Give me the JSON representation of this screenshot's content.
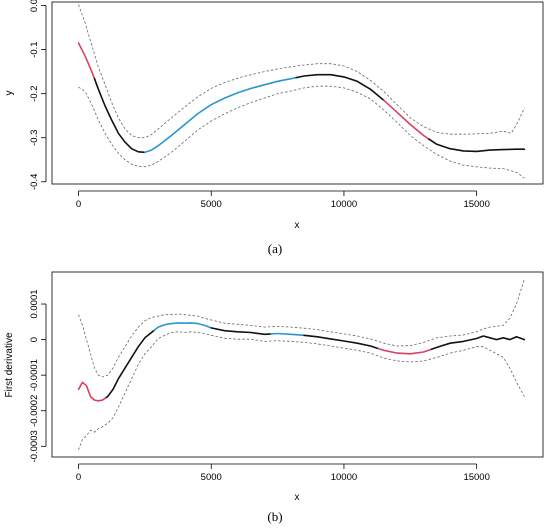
{
  "chart_data": [
    {
      "type": "line",
      "panel_label": "(a)",
      "xlabel": "x",
      "ylabel": "y",
      "xlim": [
        -1000,
        17500
      ],
      "ylim": [
        -0.405,
        0.008
      ],
      "xticks": [
        0,
        5000,
        10000,
        15000
      ],
      "xtick_labels": [
        "0",
        "5000",
        "10000",
        "15000"
      ],
      "yticks": [
        0.0,
        -0.1,
        -0.2,
        -0.3,
        -0.4
      ],
      "ytick_labels": [
        "0.0",
        "-0.1",
        "-0.2",
        "-0.3",
        "-0.4"
      ],
      "grid": false,
      "segment_colors": {
        "increasing": "#2b95d0",
        "decreasing": "#d8415f",
        "neutral": "#111111"
      },
      "series": [
        {
          "role": "estimate",
          "x": [
            0,
            250,
            500,
            750,
            1000,
            1250,
            1500,
            1750,
            2000,
            2250,
            2500,
            2750,
            3000,
            3500,
            4000,
            4500,
            5000,
            5500,
            6000,
            6500,
            7000,
            7500,
            8000,
            8500,
            9000,
            9500,
            10000,
            10500,
            11000,
            11500,
            12000,
            12500,
            13000,
            13500,
            14000,
            14500,
            15000,
            15500,
            16000,
            16500,
            16800
          ],
          "y": [
            -0.085,
            -0.115,
            -0.15,
            -0.19,
            -0.228,
            -0.26,
            -0.29,
            -0.31,
            -0.325,
            -0.332,
            -0.333,
            -0.328,
            -0.318,
            -0.295,
            -0.27,
            -0.245,
            -0.225,
            -0.21,
            -0.198,
            -0.188,
            -0.18,
            -0.172,
            -0.166,
            -0.16,
            -0.157,
            -0.157,
            -0.162,
            -0.172,
            -0.19,
            -0.215,
            -0.242,
            -0.27,
            -0.295,
            -0.315,
            -0.325,
            -0.33,
            -0.331,
            -0.328,
            -0.327,
            -0.326,
            -0.326
          ],
          "segments": [
            {
              "from": 0,
              "to": 600,
              "trend": "decreasing"
            },
            {
              "from": 600,
              "to": 2500,
              "trend": "neutral"
            },
            {
              "from": 2500,
              "to": 8200,
              "trend": "increasing"
            },
            {
              "from": 8200,
              "to": 11500,
              "trend": "neutral"
            },
            {
              "from": 11500,
              "to": 13200,
              "trend": "decreasing"
            },
            {
              "from": 13200,
              "to": 16800,
              "trend": "neutral"
            }
          ]
        },
        {
          "role": "upper-band",
          "style": "dashed",
          "x": [
            0,
            250,
            500,
            750,
            1000,
            1250,
            1500,
            1750,
            2000,
            2250,
            2500,
            2750,
            3000,
            3500,
            4000,
            4500,
            5000,
            5500,
            6000,
            6500,
            7000,
            7500,
            8000,
            8500,
            9000,
            9500,
            10000,
            10500,
            11000,
            11500,
            12000,
            12500,
            13000,
            13500,
            14000,
            14500,
            15000,
            15500,
            16000,
            16300,
            16550,
            16800
          ],
          "y": [
            0.002,
            -0.04,
            -0.09,
            -0.14,
            -0.18,
            -0.22,
            -0.255,
            -0.28,
            -0.295,
            -0.3,
            -0.3,
            -0.293,
            -0.28,
            -0.255,
            -0.23,
            -0.207,
            -0.188,
            -0.175,
            -0.165,
            -0.157,
            -0.15,
            -0.144,
            -0.139,
            -0.135,
            -0.132,
            -0.132,
            -0.137,
            -0.15,
            -0.17,
            -0.195,
            -0.225,
            -0.255,
            -0.275,
            -0.288,
            -0.292,
            -0.292,
            -0.291,
            -0.29,
            -0.285,
            -0.29,
            -0.265,
            -0.232
          ]
        },
        {
          "role": "lower-band",
          "style": "dashed",
          "x": [
            0,
            250,
            500,
            750,
            1000,
            1250,
            1500,
            1750,
            2000,
            2250,
            2500,
            2750,
            3000,
            3500,
            4000,
            4500,
            5000,
            5500,
            6000,
            6500,
            7000,
            7500,
            8000,
            8500,
            9000,
            9500,
            10000,
            10500,
            11000,
            11500,
            12000,
            12500,
            13000,
            13500,
            14000,
            14500,
            15000,
            15500,
            16000,
            16300,
            16550,
            16800
          ],
          "y": [
            -0.185,
            -0.195,
            -0.225,
            -0.26,
            -0.29,
            -0.315,
            -0.335,
            -0.35,
            -0.36,
            -0.365,
            -0.366,
            -0.362,
            -0.354,
            -0.333,
            -0.308,
            -0.282,
            -0.262,
            -0.246,
            -0.232,
            -0.22,
            -0.21,
            -0.2,
            -0.194,
            -0.187,
            -0.183,
            -0.183,
            -0.187,
            -0.197,
            -0.212,
            -0.237,
            -0.265,
            -0.295,
            -0.318,
            -0.338,
            -0.353,
            -0.362,
            -0.366,
            -0.369,
            -0.37,
            -0.375,
            -0.38,
            -0.392
          ]
        }
      ]
    },
    {
      "type": "line",
      "panel_label": "(b)",
      "xlabel": "x",
      "ylabel": "First derivative",
      "xlim": [
        -1000,
        17500
      ],
      "ylim": [
        -0.00033,
        0.00019
      ],
      "xticks": [
        0,
        5000,
        10000,
        15000
      ],
      "xtick_labels": [
        "0",
        "5000",
        "10000",
        "15000"
      ],
      "yticks": [
        0.0001,
        0,
        -0.0001,
        -0.0002,
        -0.0003
      ],
      "ytick_labels": [
        "0.0001",
        "0",
        "-0.0001",
        "-0.0002",
        "-0.0003"
      ],
      "grid": false,
      "segment_colors": {
        "positive": "#2b95d0",
        "negative": "#d8415f",
        "neutral": "#111111"
      },
      "series": [
        {
          "role": "estimate",
          "x": [
            0,
            150,
            300,
            450,
            600,
            750,
            900,
            1100,
            1300,
            1500,
            1750,
            2000,
            2250,
            2500,
            2750,
            3000,
            3250,
            3500,
            3750,
            4000,
            4250,
            4500,
            4750,
            5000,
            5500,
            6000,
            6500,
            7000,
            7500,
            8000,
            8500,
            9000,
            9500,
            10000,
            10500,
            11000,
            11500,
            12000,
            12500,
            13000,
            13500,
            14000,
            14500,
            15000,
            15250,
            15500,
            15750,
            16000,
            16250,
            16500,
            16800
          ],
          "y": [
            -0.00014,
            -0.00012,
            -0.00013,
            -0.00016,
            -0.00017,
            -0.000172,
            -0.00017,
            -0.00016,
            -0.00014,
            -0.00011,
            -8e-05,
            -5e-05,
            -2e-05,
            5e-06,
            2e-05,
            3.5e-05,
            4.2e-05,
            4.5e-05,
            4.7e-05,
            4.6e-05,
            4.7e-05,
            4.5e-05,
            4e-05,
            3.3e-05,
            2.5e-05,
            2.2e-05,
            2e-05,
            1.5e-05,
            1.7e-05,
            1.5e-05,
            1.2e-05,
            8e-06,
            2e-06,
            -4e-06,
            -1e-05,
            -1.8e-05,
            -3e-05,
            -3.8e-05,
            -4e-05,
            -3.5e-05,
            -2.2e-05,
            -1e-05,
            -5e-06,
            3e-06,
            1e-05,
            5e-06,
            0.0,
            5e-06,
            0.0,
            8e-06,
            0.0
          ],
          "segments": [
            {
              "from": 0,
              "to": 1050,
              "trend": "negative"
            },
            {
              "from": 1050,
              "to": 2850,
              "trend": "neutral"
            },
            {
              "from": 2850,
              "to": 5000,
              "trend": "positive"
            },
            {
              "from": 5000,
              "to": 7250,
              "trend": "neutral"
            },
            {
              "from": 7250,
              "to": 8500,
              "trend": "positive"
            },
            {
              "from": 8500,
              "to": 11300,
              "trend": "neutral"
            },
            {
              "from": 11300,
              "to": 13300,
              "trend": "negative"
            },
            {
              "from": 13300,
              "to": 16800,
              "trend": "neutral"
            }
          ]
        },
        {
          "role": "upper-band",
          "style": "dashed",
          "x": [
            0,
            150,
            300,
            450,
            600,
            750,
            900,
            1100,
            1300,
            1500,
            1750,
            2000,
            2250,
            2500,
            2750,
            3000,
            3250,
            3500,
            3750,
            4000,
            4250,
            4500,
            4750,
            5000,
            5500,
            6000,
            6500,
            7000,
            7500,
            8000,
            8500,
            9000,
            9500,
            10000,
            10500,
            11000,
            11500,
            12000,
            12500,
            13000,
            13500,
            14000,
            14500,
            15000,
            15250,
            15500,
            15750,
            16000,
            16250,
            16500,
            16800
          ],
          "y": [
            7e-05,
            4e-05,
            0.0,
            -4e-05,
            -8e-05,
            -0.0001,
            -0.000105,
            -0.0001,
            -8e-05,
            -5e-05,
            -2e-05,
            1e-05,
            3.5e-05,
            5.3e-05,
            6.2e-05,
            6.6e-05,
            7e-05,
            7e-05,
            7.2e-05,
            7e-05,
            6.8e-05,
            6.6e-05,
            6e-05,
            5.5e-05,
            4.6e-05,
            4.3e-05,
            4e-05,
            3.5e-05,
            3.7e-05,
            3.5e-05,
            3.2e-05,
            2.8e-05,
            2.2e-05,
            1.6e-05,
            1e-05,
            2e-06,
            -1e-05,
            -1.8e-05,
            -1.7e-05,
            -8e-06,
            5e-06,
            1e-05,
            1.3e-05,
            2.2e-05,
            3e-05,
            3.5e-05,
            3.7e-05,
            4e-05,
            6e-05,
            0.0001,
            0.00017
          ]
        },
        {
          "role": "lower-band",
          "style": "dashed",
          "x": [
            0,
            150,
            300,
            450,
            600,
            750,
            900,
            1100,
            1300,
            1500,
            1750,
            2000,
            2250,
            2500,
            2750,
            3000,
            3250,
            3500,
            3750,
            4000,
            4250,
            4500,
            4750,
            5000,
            5500,
            6000,
            6500,
            7000,
            7500,
            8000,
            8500,
            9000,
            9500,
            10000,
            10500,
            11000,
            11500,
            12000,
            12500,
            13000,
            13500,
            14000,
            14500,
            15000,
            15250,
            15500,
            15750,
            16000,
            16250,
            16500,
            16800
          ],
          "y": [
            -0.00031,
            -0.00028,
            -0.00027,
            -0.000255,
            -0.00026,
            -0.00025,
            -0.000245,
            -0.000235,
            -0.00022,
            -0.00019,
            -0.00015,
            -0.00011,
            -7e-05,
            -4e-05,
            -2e-05,
            3e-06,
            1.2e-05,
            2e-05,
            2.2e-05,
            2e-05,
            2.2e-05,
            2e-05,
            1.7e-05,
            1.2e-05,
            4e-06,
            1e-06,
            1e-06,
            -5e-06,
            -3e-06,
            -5e-06,
            -8e-06,
            -1.2e-05,
            -1.8e-05,
            -2.4e-05,
            -3e-05,
            -3.8e-05,
            -5.2e-05,
            -6e-05,
            -6.3e-05,
            -6e-05,
            -5e-05,
            -3.8e-05,
            -3e-05,
            -2e-05,
            -2e-05,
            -3e-05,
            -4e-05,
            -5e-05,
            -8e-05,
            -0.00012,
            -0.00016
          ]
        }
      ]
    }
  ]
}
